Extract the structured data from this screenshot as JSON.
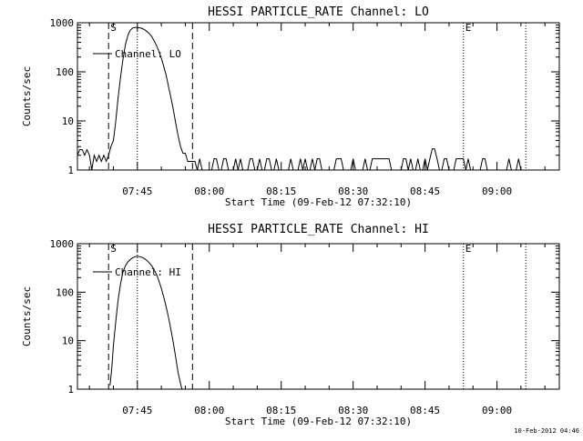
{
  "chart_data": [
    {
      "type": "line",
      "title": "HESSI PARTICLE_RATE Channel: LO",
      "xlabel": "Start Time (09-Feb-12 07:32:10)",
      "ylabel": "Counts/sec",
      "yscale": "log",
      "ylim": [
        1,
        1000
      ],
      "yticks": [
        {
          "v": 1,
          "label": "1"
        },
        {
          "v": 10,
          "label": "10"
        },
        {
          "v": 100,
          "label": "100"
        },
        {
          "v": 1000,
          "label": "1000"
        }
      ],
      "xlim_minutes": [
        -12.5,
        88
      ],
      "xticks": [
        {
          "m": 0,
          "label": "07:45"
        },
        {
          "m": 15,
          "label": "08:00"
        },
        {
          "m": 30,
          "label": "08:15"
        },
        {
          "m": 45,
          "label": "08:30"
        },
        {
          "m": 60,
          "label": "08:45"
        },
        {
          "m": 75,
          "label": "09:00"
        }
      ],
      "legend": "Channel: LO",
      "markers": {
        "S": "S",
        "E": "E"
      },
      "vlines_dashed": [
        -6,
        11.5
      ],
      "vlines_dotted": [
        0,
        68,
        81
      ],
      "series": {
        "name": "Channel: LO",
        "x": [
          -12.5,
          -12,
          -11.5,
          -11,
          -10.5,
          -10,
          -9.5,
          -9,
          -8.5,
          -8,
          -7.5,
          -7,
          -6.5,
          -6,
          -5.5,
          -5,
          -4.5,
          -4,
          -3.5,
          -3,
          -2.5,
          -2,
          -1.5,
          -1,
          -0.5,
          0,
          0.5,
          1,
          1.5,
          2,
          2.5,
          3,
          3.5,
          4,
          4.5,
          5,
          5.5,
          6,
          6.5,
          7,
          7.5,
          8,
          8.5,
          9,
          9.5,
          10,
          10.5,
          11,
          11.5,
          12
        ],
        "y": [
          2,
          2.6,
          2.6,
          2,
          2.6,
          2,
          1,
          2,
          1.5,
          2,
          1.5,
          2,
          1.5,
          2,
          3,
          4,
          10,
          30,
          80,
          180,
          350,
          550,
          700,
          780,
          800,
          800,
          790,
          760,
          720,
          660,
          600,
          520,
          430,
          340,
          260,
          190,
          130,
          85,
          50,
          30,
          17,
          9,
          5,
          3,
          2.2,
          2.2,
          1.5,
          1.5,
          1.5,
          1.5
        ],
        "noise_x_range": [
          12,
          81
        ],
        "noise_levels": [
          1,
          1.7
        ],
        "spike": {
          "x": 61.8,
          "y": 2.7
        }
      }
    },
    {
      "type": "line",
      "title": "HESSI PARTICLE_RATE Channel: HI",
      "xlabel": "Start Time (09-Feb-12 07:32:10)",
      "ylabel": "Counts/sec",
      "yscale": "log",
      "ylim": [
        1,
        1000
      ],
      "yticks": [
        {
          "v": 1,
          "label": "1"
        },
        {
          "v": 10,
          "label": "10"
        },
        {
          "v": 100,
          "label": "100"
        },
        {
          "v": 1000,
          "label": "1000"
        }
      ],
      "xlim_minutes": [
        -12.5,
        88
      ],
      "xticks": [
        {
          "m": 0,
          "label": "07:45"
        },
        {
          "m": 15,
          "label": "08:00"
        },
        {
          "m": 30,
          "label": "08:15"
        },
        {
          "m": 45,
          "label": "08:30"
        },
        {
          "m": 60,
          "label": "08:45"
        },
        {
          "m": 75,
          "label": "09:00"
        }
      ],
      "legend": "Channel: HI",
      "markers": {
        "S": "S",
        "E": "E"
      },
      "vlines_dashed": [
        -6,
        11.5
      ],
      "vlines_dotted": [
        0,
        68,
        81
      ],
      "series": {
        "name": "Channel: HI",
        "x": [
          -5.7,
          -5.3,
          -5,
          -4.5,
          -4,
          -3.5,
          -3,
          -2.5,
          -2,
          -1.5,
          -1,
          -0.5,
          0,
          0.5,
          1,
          1.5,
          2,
          2.5,
          3,
          3.5,
          4,
          4.5,
          5,
          5.5,
          6,
          6.5,
          7,
          7.5,
          8,
          8.5,
          9,
          9.3
        ],
        "y": [
          1.2,
          3,
          8,
          25,
          70,
          150,
          260,
          350,
          420,
          470,
          510,
          540,
          550,
          540,
          520,
          490,
          450,
          400,
          350,
          290,
          230,
          170,
          120,
          80,
          50,
          30,
          17,
          9,
          4.5,
          2.2,
          1.3,
          1
        ]
      }
    }
  ],
  "footer": {
    "timestamp": "10-Feb-2012 04:46"
  }
}
